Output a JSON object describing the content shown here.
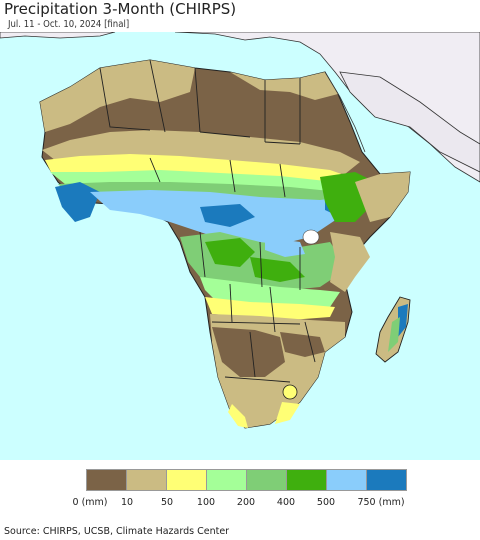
{
  "header": {
    "title": "Precipitation 3-Month (CHIRPS)",
    "subtitle": "Jul. 11 - Oct. 10, 2024 [final]"
  },
  "colors": {
    "ocean": "#ccffff",
    "nodata_land": "#f0edf3",
    "border": "#222222"
  },
  "legend": {
    "bins": [
      {
        "color": "#7b6347"
      },
      {
        "color": "#cbbb83"
      },
      {
        "color": "#ffff75"
      },
      {
        "color": "#a4ff98"
      },
      {
        "color": "#7fce76"
      },
      {
        "color": "#3faf0e"
      },
      {
        "color": "#8acdfb"
      },
      {
        "color": "#1b7abd"
      }
    ],
    "ticks": [
      "0 (mm)",
      "10",
      "50",
      "100",
      "200",
      "400",
      "500",
      "750 (mm)"
    ]
  },
  "footer": {
    "source": "Source: CHIRPS, UCSB, Climate Hazards Center"
  }
}
